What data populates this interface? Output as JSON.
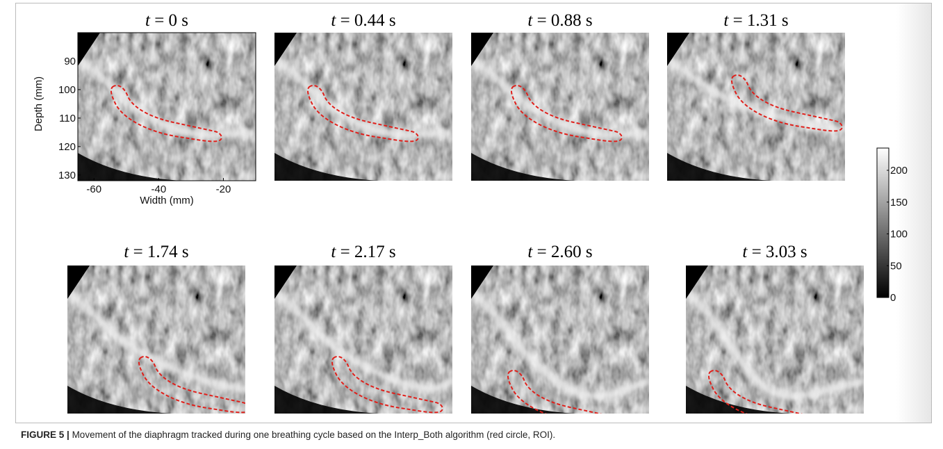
{
  "figure": {
    "panels": [
      {
        "var": "t",
        "label": "= 0 s"
      },
      {
        "var": "t",
        "label": "= 0.44 s"
      },
      {
        "var": "t",
        "label": "= 0.88 s"
      },
      {
        "var": "t",
        "label": "= 1.31 s"
      },
      {
        "var": "t",
        "label": "= 1.74 s"
      },
      {
        "var": "t",
        "label": "= 2.17 s"
      },
      {
        "var": "t",
        "label": "= 2.60 s"
      },
      {
        "var": "t",
        "label": "= 3.03 s"
      }
    ],
    "axes": {
      "ylabel": "Depth (mm)",
      "xlabel": "Width (mm)",
      "ylim": [
        80,
        132
      ],
      "yticks": [
        90,
        100,
        110,
        120,
        130
      ],
      "xlim": [
        -65,
        -10
      ],
      "xticks": [
        -60,
        -40,
        -20
      ]
    },
    "colorbar": {
      "lim": [
        0,
        235
      ],
      "ticks": [
        0,
        50,
        100,
        150,
        200
      ]
    },
    "caption": {
      "label": "FIGURE 5 |",
      "text": "Movement of the diaphragm tracked during one breathing cycle based on the Interp_Both algorithm (red circle, ROI)."
    }
  }
}
